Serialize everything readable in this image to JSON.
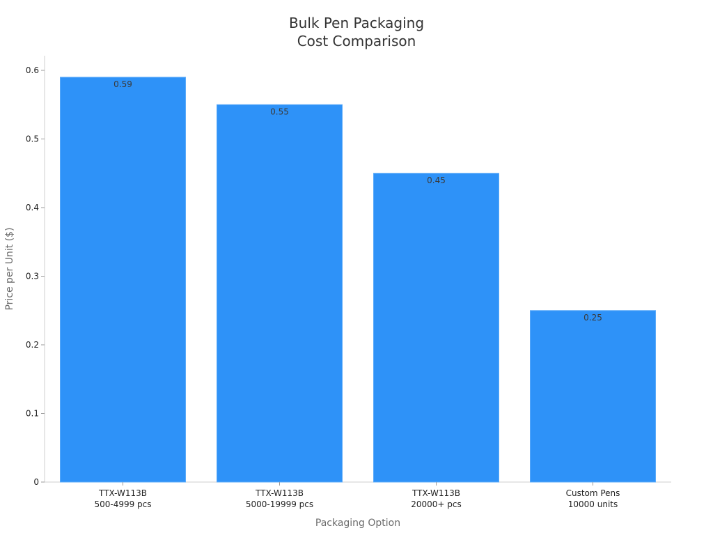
{
  "chart_data": {
    "type": "bar",
    "title_lines": [
      "Bulk Pen Packaging",
      "Cost Comparison"
    ],
    "xlabel": "Packaging Option",
    "ylabel": "Price per Unit ($)",
    "categories": [
      [
        "TTX-W113B",
        "500-4999 pcs"
      ],
      [
        "TTX-W113B",
        "5000-19999 pcs"
      ],
      [
        "TTX-W113B",
        "20000+ pcs"
      ],
      [
        "Custom Pens",
        "10000 units"
      ]
    ],
    "values": [
      0.59,
      0.55,
      0.45,
      0.25
    ],
    "value_labels": [
      "0.59",
      "0.55",
      "0.45",
      "0.25"
    ],
    "yticks": [
      0,
      0.1,
      0.2,
      0.3,
      0.4,
      0.5,
      0.6
    ],
    "ytick_labels": [
      "0",
      "0.1",
      "0.2",
      "0.3",
      "0.4",
      "0.5",
      "0.6"
    ],
    "ylim": [
      0,
      0.6
    ],
    "grid": false,
    "bar_color": "#2e92f8"
  }
}
